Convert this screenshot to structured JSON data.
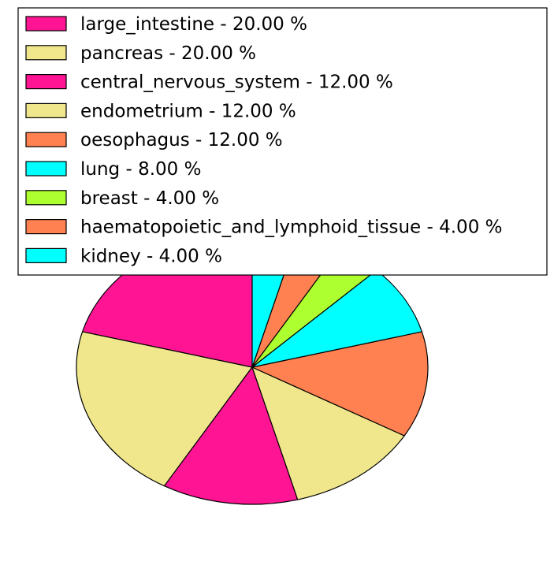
{
  "chart_data": {
    "type": "pie",
    "title": "",
    "legend_placement": "top",
    "slices": [
      {
        "label": "large_intestine",
        "value": 20.0,
        "color": "#FF1493",
        "legend": "large_intestine - 20.00 %"
      },
      {
        "label": "pancreas",
        "value": 20.0,
        "color": "#F0E68C",
        "legend": "pancreas - 20.00 %"
      },
      {
        "label": "central_nervous_system",
        "value": 12.0,
        "color": "#FF1493",
        "legend": "central_nervous_system - 12.00 %"
      },
      {
        "label": "endometrium",
        "value": 12.0,
        "color": "#F0E68C",
        "legend": "endometrium - 12.00 %"
      },
      {
        "label": "oesophagus",
        "value": 12.0,
        "color": "#FF8050",
        "legend": "oesophagus - 12.00 %"
      },
      {
        "label": "lung",
        "value": 8.0,
        "color": "#00FFFF",
        "legend": "lung - 8.00 %"
      },
      {
        "label": "breast",
        "value": 4.0,
        "color": "#ADFF2F",
        "legend": "breast - 4.00 %"
      },
      {
        "label": "haematopoietic_and_lymphoid_tissue",
        "value": 4.0,
        "color": "#FF8050",
        "legend": "haematopoietic_and_lymphoid_tissue - 4.00 %"
      },
      {
        "label": "kidney",
        "value": 4.0,
        "color": "#00FFFF",
        "legend": "kidney - 4.00 %"
      }
    ]
  }
}
